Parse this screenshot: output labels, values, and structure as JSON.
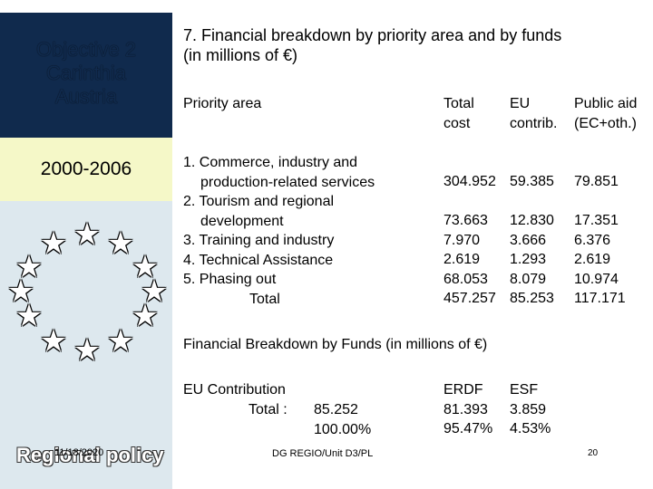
{
  "sidebar": {
    "objective_lines": [
      "Objective 2",
      "Carinthia",
      "Austria"
    ],
    "period": "2000-2006",
    "footer_logo_text": "Regional policy",
    "date": "11/18/2020"
  },
  "title_lines": [
    "7. Financial breakdown by priority area and by funds",
    "(in millions of €)"
  ],
  "table": {
    "headers": {
      "priority_area": "Priority area",
      "total_cost": [
        "Total",
        "cost"
      ],
      "eu": [
        "EU",
        "contrib."
      ],
      "public_aid": [
        "Public aid",
        "(EC+oth.)"
      ]
    },
    "row1": {
      "label_lines": [
        "1. Commerce, industry and",
        "production-related services"
      ],
      "total_cost": "304.952",
      "eu": "59.385",
      "public_aid": "79.851"
    },
    "rest_labels": [
      "2. Tourism and regional",
      "development",
      "3. Training and industry",
      "4. Technical Assistance",
      "5. Phasing out",
      "Total"
    ],
    "rest_total_cost": [
      "73.663",
      "7.970",
      "2.619",
      "68.053",
      "457.257"
    ],
    "rest_eu": [
      "12.830",
      "3.666",
      "1.293",
      "8.079",
      "85.253"
    ],
    "rest_public_aid": [
      "17.351",
      "6.376",
      "2.619",
      "10.974",
      "117.171"
    ]
  },
  "funds": {
    "heading": "Financial Breakdown by Funds (in millions of €)",
    "eu_contribution_label": "EU Contribution",
    "total_label": "Total :",
    "total_value": "85.252",
    "total_percent": "100.00%",
    "erdf_label": "ERDF",
    "erdf_value": "81.393",
    "erdf_percent": "95.47%",
    "esf_label": "ESF",
    "esf_value": "3.859",
    "esf_percent": "4.53%"
  },
  "footer": {
    "unit": "DG REGIO/Unit D3/PL",
    "page": "20"
  },
  "colors": {
    "sidebar_dark": "#102a4d",
    "sidebar_light": "#dde8ee",
    "period_box": "#f5f8c8"
  }
}
